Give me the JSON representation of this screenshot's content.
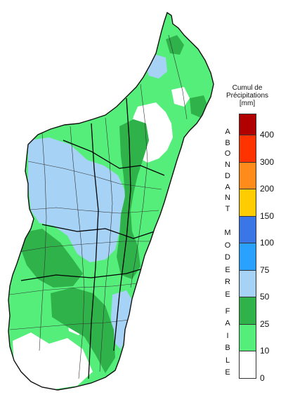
{
  "map": {
    "legend": {
      "title_lines": [
        "Cumul de",
        "Précipitations",
        "[mm]"
      ],
      "classes": [
        {
          "from": 400,
          "to": null,
          "color": "#b00000"
        },
        {
          "from": 300,
          "to": 400,
          "color": "#ff3300"
        },
        {
          "from": 200,
          "to": 300,
          "color": "#ff8c1a"
        },
        {
          "from": 150,
          "to": 200,
          "color": "#ffcc00"
        },
        {
          "from": 100,
          "to": 150,
          "color": "#3a76e6"
        },
        {
          "from": 75,
          "to": 100,
          "color": "#2aa0ff"
        },
        {
          "from": 50,
          "to": 75,
          "color": "#a6d2f5"
        },
        {
          "from": 25,
          "to": 50,
          "color": "#2fb24a"
        },
        {
          "from": 10,
          "to": 25,
          "color": "#55ee7a"
        },
        {
          "from": 0,
          "to": 10,
          "color": "#ffffff"
        }
      ],
      "tick_labels": [
        "400",
        "300",
        "200",
        "150",
        "100",
        "75",
        "50",
        "25",
        "10",
        "0"
      ],
      "categories": [
        {
          "name": "ABONDANT",
          "letters": [
            "A",
            "B",
            "O",
            "N",
            "D",
            "A",
            "N",
            "T"
          ]
        },
        {
          "name": "MODERE",
          "letters": [
            "M",
            "O",
            "D",
            "E",
            "R",
            "E"
          ]
        },
        {
          "name": "FAIBLE",
          "letters": [
            "F",
            "A",
            "I",
            "B",
            "L",
            "E"
          ]
        }
      ]
    },
    "colors": {
      "island_outline": "#111111",
      "district_lines": "#333333",
      "region_lines": "#000000"
    }
  }
}
